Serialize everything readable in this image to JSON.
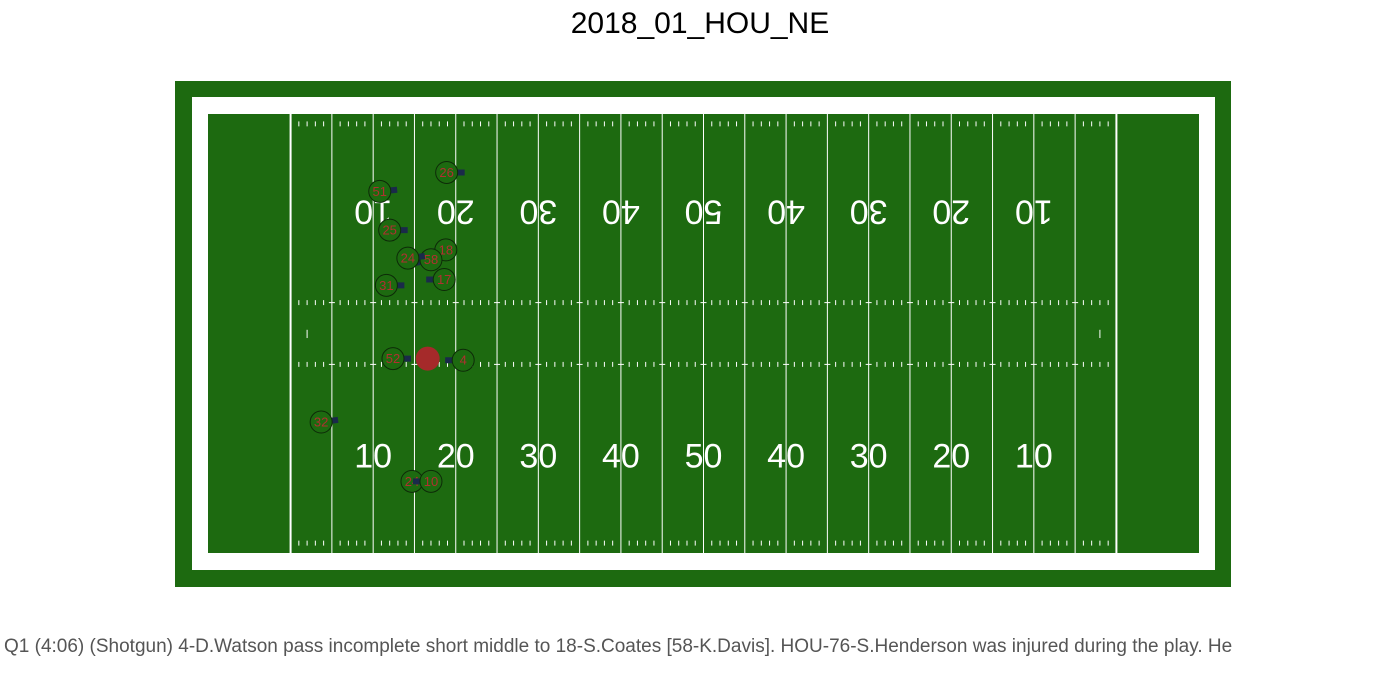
{
  "title": "2018_01_HOU_NE",
  "caption": "Q1 (4:06) (Shotgun) 4-D.Watson pass incomplete short middle to 18-S.Coates [58-K.Davis]. HOU-76-S.Henderson was injured during the play. He",
  "colors": {
    "outer_border": "#1d6a10",
    "white_band": "#ffffff",
    "turf": "#1d6a10",
    "lines": "#ffffff",
    "player_fill": "#1d6a10",
    "player_outline": "#0d2a08",
    "player_number": "#b03030",
    "player_facing": "#1a2a4a",
    "football": "#a52a2a"
  },
  "chart_data": {
    "type": "scatter",
    "x_axis": "yard line (0 = left goal line, 100 = right goal line)",
    "y_axis": "field width yards (0 = far sideline, 53.3 = near sideline)",
    "xlim": [
      -10,
      110
    ],
    "ylim": [
      0,
      53.3
    ],
    "bottom_numbers": [
      {
        "yard": 10,
        "label": "10"
      },
      {
        "yard": 20,
        "label": "20"
      },
      {
        "yard": 30,
        "label": "30"
      },
      {
        "yard": 40,
        "label": "40"
      },
      {
        "yard": 50,
        "label": "50"
      },
      {
        "yard": 60,
        "label": "40"
      },
      {
        "yard": 70,
        "label": "30"
      },
      {
        "yard": 80,
        "label": "20"
      },
      {
        "yard": 90,
        "label": "10"
      }
    ],
    "top_numbers": [
      {
        "yard": 10,
        "label": "10"
      },
      {
        "yard": 20,
        "label": "20"
      },
      {
        "yard": 30,
        "label": "30"
      },
      {
        "yard": 40,
        "label": "40"
      },
      {
        "yard": 50,
        "label": "50"
      },
      {
        "yard": 60,
        "label": "40"
      },
      {
        "yard": 70,
        "label": "30"
      },
      {
        "yard": 80,
        "label": "20"
      },
      {
        "yard": 90,
        "label": "10"
      }
    ],
    "football": {
      "x": 16.6,
      "y": 29.7
    },
    "players": [
      {
        "number": "26",
        "x": 18.9,
        "y": 7.1,
        "dir": 90
      },
      {
        "number": "51",
        "x": 10.8,
        "y": 9.4,
        "dir": 75
      },
      {
        "number": "25",
        "x": 12.0,
        "y": 14.1,
        "dir": 90
      },
      {
        "number": "18",
        "x": 18.8,
        "y": 16.5,
        "dir": 250
      },
      {
        "number": "58",
        "x": 17.0,
        "y": 17.7,
        "dir": 240
      },
      {
        "number": "24",
        "x": 14.2,
        "y": 17.5,
        "dir": 70
      },
      {
        "number": "17",
        "x": 18.6,
        "y": 20.1,
        "dir": 270
      },
      {
        "number": "31",
        "x": 11.6,
        "y": 20.8,
        "dir": 90
      },
      {
        "number": "52",
        "x": 12.4,
        "y": 29.7,
        "dir": 90
      },
      {
        "number": "4",
        "x": 20.9,
        "y": 29.9,
        "dir": 270
      },
      {
        "number": "32",
        "x": 3.7,
        "y": 37.4,
        "dir": 70
      },
      {
        "number": "24",
        "x": 14.7,
        "y": 44.6,
        "dir": 90
      },
      {
        "number": "10",
        "x": 17.0,
        "y": 44.6,
        "dir": 270
      }
    ]
  }
}
